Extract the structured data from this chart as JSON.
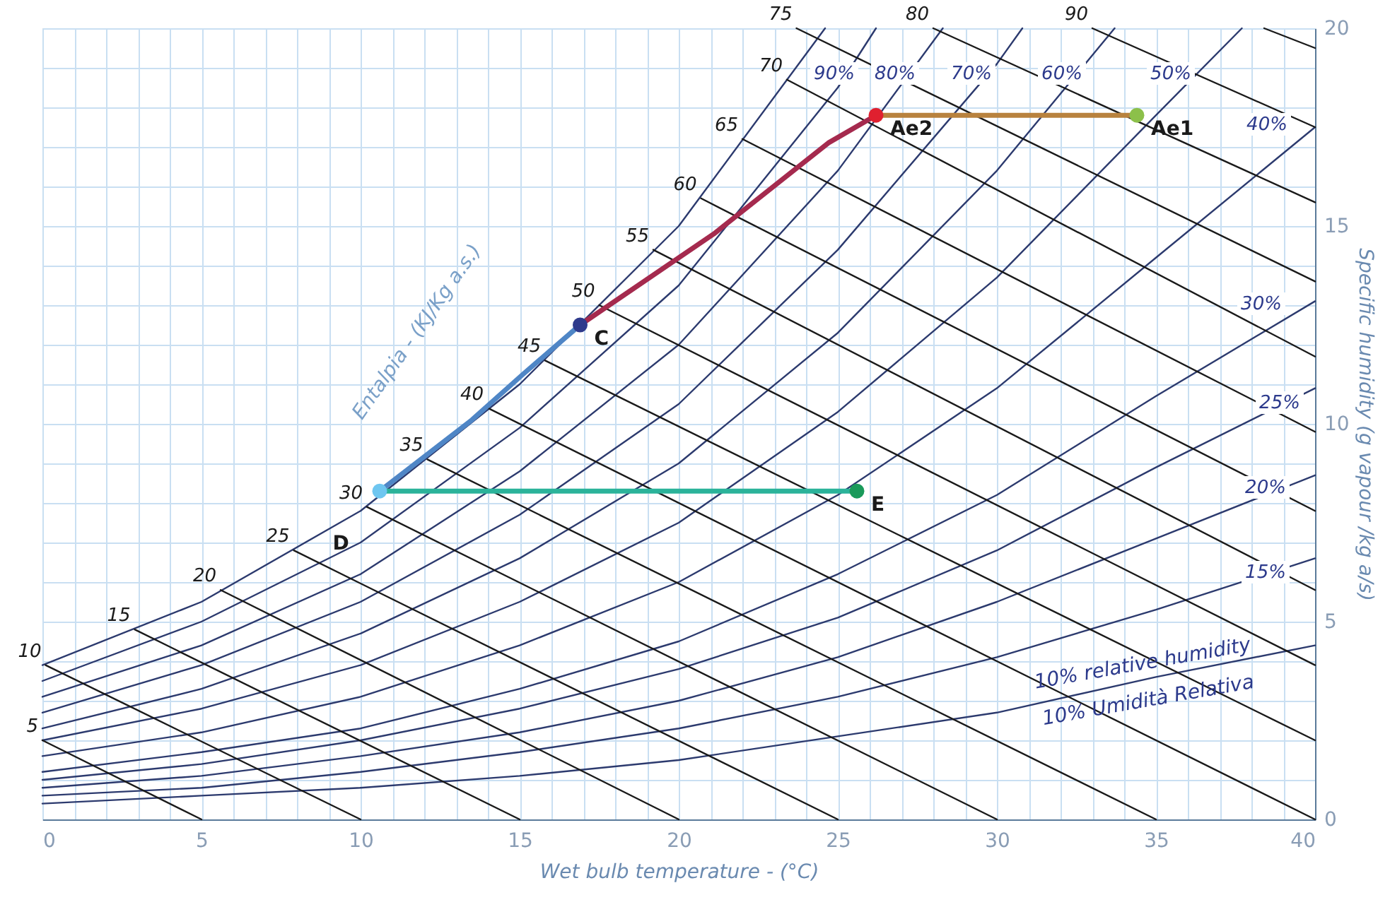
{
  "chart_data": {
    "type": "line",
    "xlabel": "Wet bulb temperature - (°C)",
    "ylabel": "Specific humidity (g vapour /kg a/s)",
    "xlim": [
      0,
      40
    ],
    "ylim": [
      0,
      20
    ],
    "xticks": [
      0,
      {
        "value": 1,
        "label": null
      },
      {
        "value": 2,
        "label": null
      },
      {
        "value": 3,
        "label": null
      },
      {
        "value": 4,
        "label": null
      },
      5,
      {
        "value": 6,
        "label": null
      },
      {
        "value": 7,
        "label": null
      },
      {
        "value": 8,
        "label": null
      },
      {
        "value": 9,
        "label": null
      },
      10,
      {
        "value": 11,
        "label": null
      },
      {
        "value": 12,
        "label": null
      },
      {
        "value": 13,
        "label": null
      },
      {
        "value": 14,
        "label": null
      },
      15,
      {
        "value": 16,
        "label": null
      },
      {
        "value": 17,
        "label": null
      },
      {
        "value": 18,
        "label": null
      },
      {
        "value": 19,
        "label": null
      },
      20,
      {
        "value": 21,
        "label": null
      },
      {
        "value": 22,
        "label": null
      },
      {
        "value": 23,
        "label": null
      },
      {
        "value": 24,
        "label": null
      },
      25,
      {
        "value": 26,
        "label": null
      },
      {
        "value": 27,
        "label": null
      },
      {
        "value": 28,
        "label": null
      },
      {
        "value": 29,
        "label": null
      },
      30,
      {
        "value": 31,
        "label": null
      },
      {
        "value": 32,
        "label": null
      },
      {
        "value": 33,
        "label": null
      },
      {
        "value": 34,
        "label": null
      },
      35,
      {
        "value": 36,
        "label": null
      },
      {
        "value": 37,
        "label": null
      },
      {
        "value": 38,
        "label": null
      },
      {
        "value": 39,
        "label": null
      },
      40
    ],
    "yticks": [
      0,
      {
        "value": 1,
        "label": null
      },
      {
        "value": 2,
        "label": null
      },
      {
        "value": 3,
        "label": null
      },
      {
        "value": 4,
        "label": null
      },
      5,
      {
        "value": 6,
        "label": null
      },
      {
        "value": 7,
        "label": null
      },
      {
        "value": 8,
        "label": null
      },
      {
        "value": 9,
        "label": null
      },
      10,
      {
        "value": 11,
        "label": null
      },
      {
        "value": 12,
        "label": null
      },
      {
        "value": 13,
        "label": null
      },
      {
        "value": 14,
        "label": null
      },
      15,
      {
        "value": 16,
        "label": null
      },
      {
        "value": 17,
        "label": null
      },
      {
        "value": 18,
        "label": null
      },
      {
        "value": 19,
        "label": null
      },
      20
    ],
    "grid": true,
    "series": [
      {
        "type": "line",
        "color": "#2c3a6e",
        "x": [
          0,
          5,
          10,
          15,
          20,
          24.6
        ],
        "values": [
          3.9,
          5.5,
          7.8,
          11.0,
          15.0,
          20
        ]
      },
      {
        "type": "line",
        "color": "#2c3a6e",
        "x": [
          0,
          5,
          10,
          15,
          20,
          25,
          26.2
        ],
        "values": [
          3.5,
          5.0,
          7.0,
          9.9,
          13.5,
          18.5,
          20
        ]
      },
      {
        "type": "line",
        "color": "#2c3a6e",
        "x": [
          0,
          5,
          10,
          15,
          20,
          25,
          28.3
        ],
        "values": [
          3.1,
          4.4,
          6.2,
          8.8,
          12.0,
          16.4,
          20
        ]
      },
      {
        "type": "line",
        "color": "#2c3a6e",
        "x": [
          0,
          5,
          10,
          15,
          20,
          25,
          30,
          30.8
        ],
        "values": [
          2.7,
          3.9,
          5.5,
          7.7,
          10.5,
          14.4,
          19.1,
          20
        ]
      },
      {
        "type": "line",
        "color": "#2c3a6e",
        "x": [
          0,
          5,
          10,
          15,
          20,
          25,
          30,
          33.7
        ],
        "values": [
          2.3,
          3.3,
          4.7,
          6.6,
          9.0,
          12.3,
          16.4,
          20
        ]
      },
      {
        "type": "line",
        "color": "#2c3a6e",
        "x": [
          0,
          5,
          10,
          15,
          20,
          25,
          30,
          35,
          37.7
        ],
        "values": [
          2.0,
          2.8,
          3.9,
          5.5,
          7.5,
          10.3,
          13.7,
          17.8,
          20
        ]
      },
      {
        "type": "line",
        "color": "#2c3a6e",
        "x": [
          0,
          5,
          10,
          15,
          20,
          25,
          30,
          35,
          40
        ],
        "values": [
          1.6,
          2.2,
          3.1,
          4.4,
          6.0,
          8.2,
          10.9,
          14.2,
          17.5
        ]
      },
      {
        "type": "line",
        "color": "#2c3a6e",
        "x": [
          0,
          5,
          10,
          15,
          20,
          25,
          30,
          35,
          40
        ],
        "values": [
          1.2,
          1.7,
          2.3,
          3.3,
          4.5,
          6.2,
          8.2,
          10.7,
          13.1
        ]
      },
      {
        "type": "line",
        "color": "#2c3a6e",
        "x": [
          0,
          5,
          10,
          15,
          20,
          25,
          30,
          35,
          40
        ],
        "values": [
          1.0,
          1.4,
          2.0,
          2.8,
          3.8,
          5.1,
          6.8,
          8.9,
          10.9
        ]
      },
      {
        "type": "line",
        "color": "#2c3a6e",
        "x": [
          0,
          5,
          10,
          15,
          20,
          25,
          30,
          35,
          40
        ],
        "values": [
          0.8,
          1.1,
          1.6,
          2.2,
          3.0,
          4.1,
          5.5,
          7.1,
          8.7
        ]
      },
      {
        "type": "line",
        "color": "#2c3a6e",
        "x": [
          0,
          5,
          10,
          15,
          20,
          25,
          30,
          35,
          40
        ],
        "values": [
          0.6,
          0.8,
          1.2,
          1.7,
          2.3,
          3.1,
          4.1,
          5.3,
          6.6
        ]
      },
      {
        "type": "line",
        "color": "#2c3a6e",
        "x": [
          0,
          5,
          10,
          15,
          20,
          25,
          30,
          35,
          40
        ],
        "values": [
          0.4,
          0.6,
          0.8,
          1.1,
          1.5,
          2.1,
          2.7,
          3.6,
          4.4
        ]
      },
      {
        "type": "line",
        "color": "#1a1a1a",
        "x": [
          0,
          5
        ],
        "values": [
          2.0,
          0
        ]
      },
      {
        "type": "line",
        "color": "#1a1a1a",
        "x": [
          0.1,
          10
        ],
        "values": [
          3.9,
          0
        ]
      },
      {
        "type": "line",
        "color": "#1a1a1a",
        "x": [
          2.9,
          15
        ],
        "values": [
          4.8,
          0
        ]
      },
      {
        "type": "line",
        "color": "#1a1a1a",
        "x": [
          5.6,
          20
        ],
        "values": [
          5.8,
          0
        ]
      },
      {
        "type": "line",
        "color": "#1a1a1a",
        "x": [
          7.9,
          25
        ],
        "values": [
          6.8,
          0
        ]
      },
      {
        "type": "line",
        "color": "#1a1a1a",
        "x": [
          10.2,
          30
        ],
        "values": [
          7.9,
          0
        ]
      },
      {
        "type": "line",
        "color": "#1a1a1a",
        "x": [
          12.1,
          35
        ],
        "values": [
          9.1,
          0
        ]
      },
      {
        "type": "line",
        "color": "#1a1a1a",
        "x": [
          14.0,
          40
        ],
        "values": [
          10.4,
          0
        ]
      },
      {
        "type": "line",
        "color": "#1a1a1a",
        "x": [
          15.8,
          40
        ],
        "values": [
          11.6,
          2.0
        ]
      },
      {
        "type": "line",
        "color": "#1a1a1a",
        "x": [
          17.5,
          40
        ],
        "values": [
          13.0,
          3.9
        ]
      },
      {
        "type": "line",
        "color": "#1a1a1a",
        "x": [
          19.2,
          40
        ],
        "values": [
          14.4,
          5.8
        ]
      },
      {
        "type": "line",
        "color": "#1a1a1a",
        "x": [
          20.7,
          40
        ],
        "values": [
          15.7,
          7.8
        ]
      },
      {
        "type": "line",
        "color": "#1a1a1a",
        "x": [
          22.0,
          40
        ],
        "values": [
          17.2,
          9.8
        ]
      },
      {
        "type": "line",
        "color": "#1a1a1a",
        "x": [
          23.4,
          40
        ],
        "values": [
          18.7,
          11.7
        ]
      },
      {
        "type": "line",
        "color": "#1a1a1a",
        "x": [
          23.7,
          40
        ],
        "values": [
          20,
          13.6
        ]
      },
      {
        "type": "line",
        "color": "#1a1a1a",
        "x": [
          28.0,
          40
        ],
        "values": [
          20,
          15.6
        ]
      },
      {
        "type": "line",
        "color": "#1a1a1a",
        "x": [
          33.0,
          40
        ],
        "values": [
          20,
          17.5
        ]
      },
      {
        "type": "line",
        "color": "#1a1a1a",
        "x": [
          38.4,
          40
        ],
        "values": [
          20,
          19.5
        ]
      },
      {
        "type": "line",
        "color": "#4f86c6",
        "x": [
          10.6,
          13.5,
          15.1,
          16.9
        ],
        "values": [
          8.3,
          10.1,
          11.25,
          12.5
        ]
      },
      {
        "type": "line",
        "color": "#a52a4e",
        "x": [
          16.9,
          21.1,
          24.7,
          26.2
        ],
        "values": [
          12.5,
          14.8,
          17.1,
          17.8
        ]
      },
      {
        "type": "line",
        "color": "#b8823e",
        "x": [
          26.2,
          34.4
        ],
        "values": [
          17.8,
          17.8
        ]
      },
      {
        "type": "line",
        "color": "#2bb39a",
        "x": [
          10.6,
          25.6
        ],
        "values": [
          8.3,
          8.3
        ]
      },
      {
        "type": "scatter",
        "x": [
          10.6,
          16.9,
          26.2,
          34.4,
          25.6
        ],
        "values": [
          8.3,
          12.5,
          17.8,
          17.8,
          8.3
        ],
        "colors": [
          "#6ec6f0",
          "#2e3a8c",
          "#e0202f",
          "#8cc04a",
          "#1a9a5a"
        ]
      }
    ],
    "annotations": [
      {
        "text": "Ae1",
        "x": 34.4,
        "y": 17.8
      },
      {
        "text": "Ae2",
        "x": 26.2,
        "y": 17.8
      },
      {
        "text": "C",
        "x": 16.9,
        "y": 12.5
      },
      {
        "text": "E",
        "x": 25.6,
        "y": 8.3
      },
      {
        "text": "5",
        "x": 0,
        "y": 2.0
      },
      {
        "text": "10",
        "x": 0.1,
        "y": 3.9
      },
      {
        "text": "15",
        "x": 2.9,
        "y": 4.8
      },
      {
        "text": "20",
        "x": 5.6,
        "y": 5.8
      },
      {
        "text": "25",
        "x": 7.9,
        "y": 6.8
      },
      {
        "text": "30",
        "x": 10.2,
        "y": 7.9
      },
      {
        "text": "35",
        "x": 12.1,
        "y": 9.1
      },
      {
        "text": "40",
        "x": 14.0,
        "y": 10.4
      },
      {
        "text": "45",
        "x": 15.8,
        "y": 11.6
      },
      {
        "text": "50",
        "x": 17.5,
        "y": 13.0
      },
      {
        "text": "55",
        "x": 19.2,
        "y": 14.4
      },
      {
        "text": "60",
        "x": 20.7,
        "y": 15.7
      },
      {
        "text": "65",
        "x": 22.0,
        "y": 17.2
      },
      {
        "text": "70",
        "x": 23.4,
        "y": 18.7
      },
      {
        "text": "75",
        "x": 23.7,
        "y": 20
      },
      {
        "text": "80",
        "x": 28.0,
        "y": 20
      },
      {
        "text": "90",
        "x": 33.0,
        "y": 20
      },
      "90%",
      "80%",
      "70%",
      "60%",
      "50%",
      "40%",
      "30%",
      "25%",
      "20%",
      "15%",
      "D",
      "Entalpia - (KJ/Kg a.s.)",
      "10% relative humidity",
      "10% Umidità Relativa"
    ]
  }
}
